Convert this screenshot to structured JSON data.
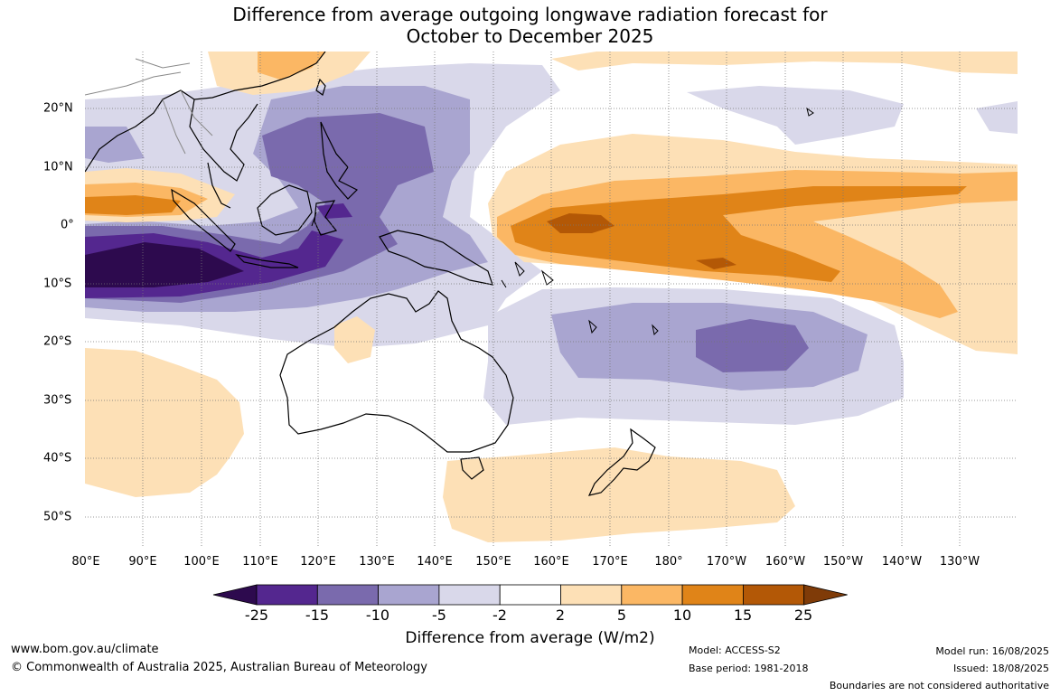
{
  "title_line1": "Difference from average outgoing longwave radiation forecast for",
  "title_line2": "October to December 2025",
  "lon_labels": [
    "80°E",
    "90°E",
    "100°E",
    "110°E",
    "120°E",
    "130°E",
    "140°E",
    "150°E",
    "160°E",
    "170°E",
    "180°",
    "170°W",
    "160°W",
    "150°W",
    "140°W",
    "130°W"
  ],
  "lat_labels": [
    "20°N",
    "10°N",
    "0°",
    "10°S",
    "20°S",
    "30°S",
    "40°S",
    "50°S"
  ],
  "colorbar": {
    "ticks": [
      "-25",
      "-15",
      "-10",
      "-5",
      "-2",
      "2",
      "5",
      "10",
      "15",
      "25"
    ],
    "colors": [
      "#2d0a4e",
      "#54278f",
      "#7a6aad",
      "#a9a5d0",
      "#d9d8ea",
      "#ffffff",
      "#fde0b6",
      "#fbb764",
      "#e08418",
      "#b35806",
      "#7f3b08"
    ],
    "label": "Difference from average (W/m2)"
  },
  "footer": {
    "website": "www.bom.gov.au/climate",
    "copyright": "© Commonwealth of Australia 2025, Australian Bureau of Meteorology",
    "model": "Model: ACCESS-S2",
    "base_period": "Base period: 1981-2018",
    "model_run": "Model run: 16/08/2025",
    "issued": "Issued: 18/08/2025",
    "disclaimer": "Boundaries are not considered authoritative"
  }
}
